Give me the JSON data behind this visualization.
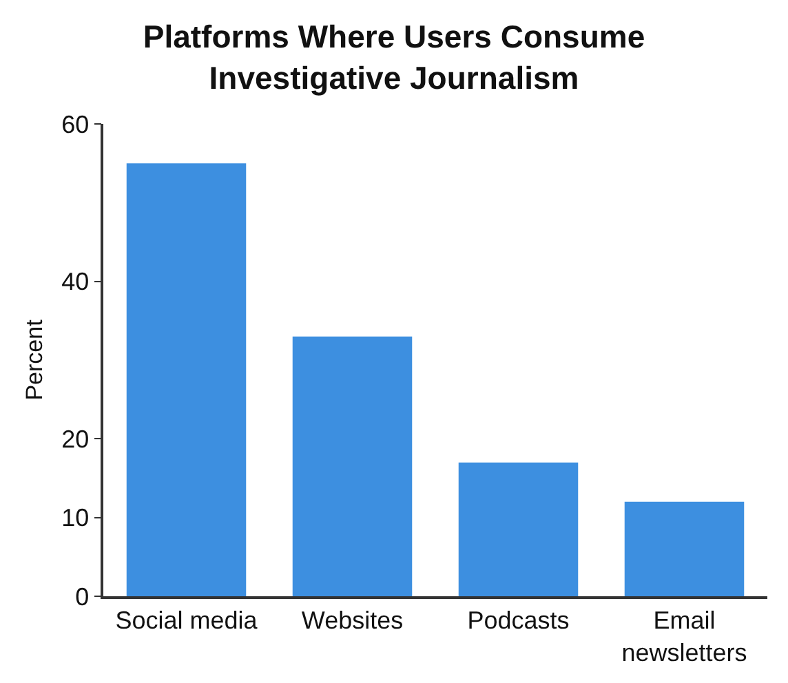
{
  "chart_data": {
    "type": "bar",
    "title": "Platforms Where Users Consume Investigative Journalism",
    "ylabel": "Percent",
    "categories": [
      "Social media",
      "Websites",
      "Podcasts",
      "Email newsletters"
    ],
    "values": [
      55,
      33,
      17,
      12
    ],
    "color": "#3d8fe0",
    "ylim": [
      0,
      60
    ],
    "yticks": [
      0,
      10,
      20,
      40,
      60
    ],
    "grid": false
  }
}
